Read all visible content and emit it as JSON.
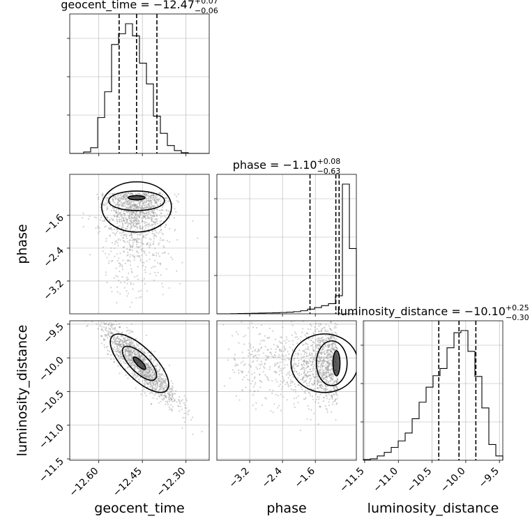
{
  "chart_data": {
    "type": "corner",
    "parameters": [
      "geocent_time",
      "phase",
      "luminosity_distance"
    ],
    "titles": [
      {
        "label": "geocent_time",
        "median": "−12.47",
        "plus": "+0.07",
        "minus": "−0.06"
      },
      {
        "label": "phase",
        "median": "−1.10",
        "plus": "+0.08",
        "minus": "−0.63"
      },
      {
        "label": "luminosity_distance",
        "median": "−10.10",
        "plus": "+0.25",
        "minus": "−0.30"
      }
    ],
    "axis_labels": {
      "x": [
        "geocent_time",
        "phase",
        "luminosity_distance"
      ],
      "y": [
        "phase",
        "luminosity_distance"
      ]
    },
    "ranges": {
      "geocent_time": [
        -12.7,
        -12.22
      ],
      "phase": [
        -4.0,
        -0.6
      ],
      "luminosity_distance": [
        -11.52,
        -9.45
      ]
    },
    "ticks": {
      "geocent_time": {
        "values": [
          -12.6,
          -12.45,
          -12.3
        ],
        "labels": [
          "−12.60",
          "−12.45",
          "−12.30"
        ]
      },
      "phase": {
        "values": [
          -3.2,
          -2.4,
          -1.6
        ],
        "labels": [
          "−3.2",
          "−2.4",
          "−1.6"
        ]
      },
      "luminosity_distance": {
        "values": [
          -11.5,
          -11.0,
          -10.5,
          -10.0,
          -9.5
        ],
        "labels": [
          "−11.5",
          "−11.0",
          "−10.5",
          "−10.0",
          "−9.5"
        ]
      }
    },
    "quantiles": {
      "geocent_time": [
        -12.53,
        -12.47,
        -12.4
      ],
      "phase": [
        -1.73,
        -1.1,
        -1.02
      ],
      "luminosity_distance": [
        -10.4,
        -10.1,
        -9.85
      ]
    },
    "histograms": {
      "geocent_time": {
        "edges": [
          -12.7,
          -12.676,
          -12.652,
          -12.628,
          -12.604,
          -12.58,
          -12.556,
          -12.532,
          -12.508,
          -12.484,
          -12.46,
          -12.436,
          -12.412,
          -12.388,
          -12.364,
          -12.34,
          -12.316,
          -12.292,
          -12.268,
          -12.244,
          -12.22
        ],
        "counts": [
          0,
          0,
          2,
          8,
          50,
          86,
          152,
          167,
          181,
          164,
          126,
          97,
          52,
          28,
          11,
          4,
          1,
          0,
          0,
          0
        ]
      },
      "phase": {
        "edges": [
          -4.0,
          -3.83,
          -3.66,
          -3.49,
          -3.32,
          -3.15,
          -2.98,
          -2.81,
          -2.64,
          -2.47,
          -2.3,
          -2.13,
          -1.96,
          -1.79,
          -1.62,
          -1.45,
          -1.28,
          -1.11,
          -0.94,
          -0.77,
          -0.6
        ],
        "counts": [
          0,
          0,
          1,
          2,
          3,
          4,
          5,
          6,
          7,
          9,
          11,
          15,
          21,
          32,
          43,
          56,
          70,
          125,
          895,
          450
        ]
      },
      "luminosity_distance": {
        "edges": [
          -11.52,
          -11.4165,
          -11.313,
          -11.2095,
          -11.106,
          -11.0025,
          -10.899,
          -10.7955,
          -10.692,
          -10.5885,
          -10.485,
          -10.3815,
          -10.278,
          -10.1745,
          -10.071,
          -9.9675,
          -9.864,
          -9.7605,
          -9.657,
          -9.5535,
          -9.45
        ],
        "counts": [
          1,
          2,
          6,
          11,
          18,
          27,
          38,
          58,
          81,
          102,
          118,
          128,
          157,
          178,
          181,
          152,
          117,
          73,
          22,
          6
        ]
      }
    },
    "grid": true,
    "colors": {
      "line": "#000000",
      "grid": "#b0b0b0",
      "points": "#9a9a9a"
    }
  }
}
